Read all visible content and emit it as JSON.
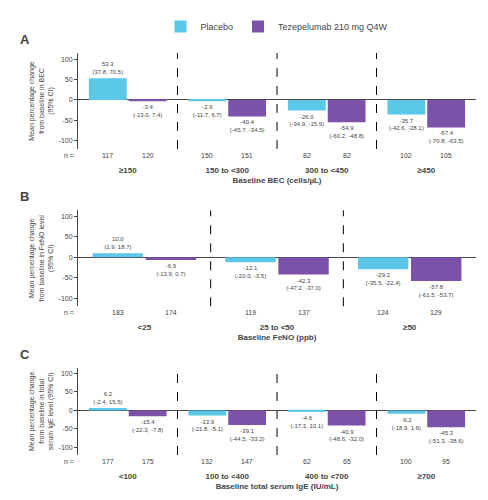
{
  "chart_data": [
    {
      "type": "bar",
      "title": "A",
      "categories": [
        "≥150",
        "150 to <300",
        "300 to <450",
        "≥450"
      ],
      "series": [
        {
          "name": "Placebo",
          "color": "#5BC8E8",
          "values": [
            53.3,
            -2.9,
            -26.0,
            -35.7
          ],
          "value_labels": [
            "53.3",
            "-2.9",
            "-26.0",
            "-35.7"
          ],
          "ci": [
            "(37.8, 70.5)",
            "(-11.7, 6.7)",
            "(-34.9, -15.9)",
            "(-42.6, -28.1)"
          ],
          "n": [
            117,
            150,
            82,
            102
          ]
        },
        {
          "name": "Tezepelumab 210 mg Q4W",
          "color": "#7B52A8",
          "values": [
            -3.4,
            -40.4,
            -54.9,
            -67.4
          ],
          "value_labels": [
            "-3.4",
            "-40.4",
            "-54.9",
            "-67.4"
          ],
          "ci": [
            "(-13.0, 7.4)",
            "(-45.7, -34.5)",
            "(-60.2, -48.8)",
            "(-70.8, -63.5)"
          ],
          "n": [
            120,
            151,
            82,
            105
          ]
        }
      ],
      "xlabel": "Baseline BEC (cells/µL)",
      "ylabel": "Mean percentage change\nfrom baseline in BEC\n(95% CI)",
      "ylim": [
        -120,
        115
      ],
      "yticks": [
        -100,
        -50,
        0,
        50,
        100
      ],
      "grid": false,
      "data_labels": true,
      "legend": "upper center",
      "n_label": "n ="
    },
    {
      "type": "bar",
      "title": "B",
      "categories": [
        "<25",
        "25 to <50",
        "≥50"
      ],
      "series": [
        {
          "name": "Placebo",
          "color": "#5BC8E8",
          "values": [
            10.0,
            -12.1,
            -29.2
          ],
          "value_labels": [
            "10.0",
            "-12.1",
            "-29.2"
          ],
          "ci": [
            "(1.9, 18.7)",
            "(-20.0, -3.5)",
            "(-35.5, -22.4)"
          ],
          "n": [
            183,
            119,
            124
          ]
        },
        {
          "name": "Tezepelumab 210 mg Q4W",
          "color": "#7B52A8",
          "values": [
            -6.9,
            -42.3,
            -57.8
          ],
          "value_labels": [
            "-6.9",
            "-42.3",
            "-57.8"
          ],
          "ci": [
            "(-13.9, 0.7)",
            "(-47.2, -37.0)",
            "(-61.5, -53.7)"
          ],
          "n": [
            174,
            137,
            129
          ]
        }
      ],
      "xlabel": "Baseline FeNO (ppb)",
      "ylabel": "Mean percentage change\nfrom baseline in FeNO level\n(95% CI)",
      "ylim": [
        -120,
        115
      ],
      "yticks": [
        -100,
        -50,
        0,
        50,
        100
      ],
      "grid": false,
      "data_labels": true,
      "n_label": "n ="
    },
    {
      "type": "bar",
      "title": "C",
      "categories": [
        "<100",
        "100 to <400",
        "400 to <700",
        "≥700"
      ],
      "series": [
        {
          "name": "Placebo",
          "color": "#5BC8E8",
          "values": [
            6.2,
            -13.9,
            -4.6,
            -9.2
          ],
          "value_labels": [
            "6.2",
            "-13.9",
            "-4.6",
            "-9.2"
          ],
          "ci": [
            "(-2.4, 15.5)",
            "(-21.8, -5.1)",
            "(-17.3, 10.1)",
            "(-18.9, 1.6)"
          ],
          "n": [
            177,
            132,
            62,
            100
          ]
        },
        {
          "name": "Tezepelumab 210 mg Q4W",
          "color": "#7B52A8",
          "values": [
            -15.4,
            -39.1,
            -40.9,
            -45.3
          ],
          "value_labels": [
            "-15.4",
            "-39.1",
            "-40.9",
            "-45.3"
          ],
          "ci": [
            "(-22.3, -7.8)",
            "(-44.5, -33.2)",
            "(-48.6, -32.0)",
            "(-51.3, -38.6)"
          ],
          "n": [
            175,
            147,
            65,
            95
          ]
        }
      ],
      "xlabel": "Baseline total serum IgE (IU/mL)",
      "ylabel": "Mean percentage change\nfrom baseline in total\nserum IgE level (95% CI)",
      "ylim": [
        -120,
        115
      ],
      "yticks": [
        -100,
        -50,
        0,
        50,
        100
      ],
      "grid": false,
      "data_labels": true,
      "n_label": "n ="
    }
  ]
}
